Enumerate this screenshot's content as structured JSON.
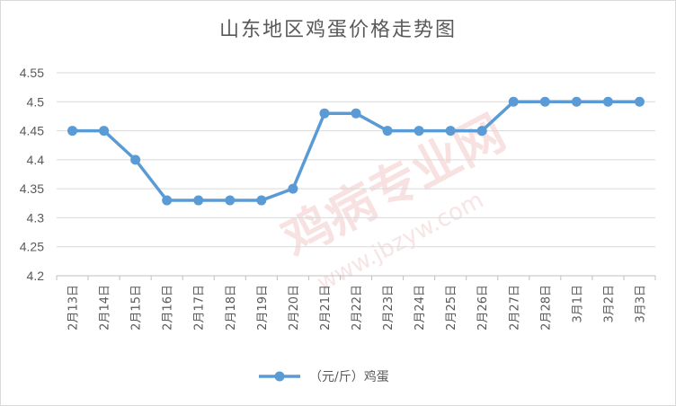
{
  "chart_data": {
    "type": "line",
    "title": "山东地区鸡蛋价格走势图",
    "categories": [
      "2月13日",
      "2月14日",
      "2月15日",
      "2月16日",
      "2月17日",
      "2月18日",
      "2月19日",
      "2月20日",
      "2月21日",
      "2月22日",
      "2月23日",
      "2月24日",
      "2月25日",
      "2月26日",
      "2月27日",
      "2月28日",
      "3月1日",
      "3月2日",
      "3月3日"
    ],
    "series": [
      {
        "name": "（元/斤）鸡蛋",
        "values": [
          4.45,
          4.45,
          4.4,
          4.33,
          4.33,
          4.33,
          4.33,
          4.35,
          4.48,
          4.48,
          4.45,
          4.45,
          4.45,
          4.45,
          4.5,
          4.5,
          4.5,
          4.5,
          4.5
        ]
      }
    ],
    "ylim": [
      4.2,
      4.55
    ],
    "yticks": [
      "4.2",
      "4.25",
      "4.3",
      "4.35",
      "4.4",
      "4.45",
      "4.5",
      "4.55"
    ],
    "grid": "horizontal",
    "legend_position": "bottom",
    "series_color": "#5b9bd5",
    "watermark": [
      "鸡病专业网",
      "www.jbzyw.com"
    ]
  }
}
